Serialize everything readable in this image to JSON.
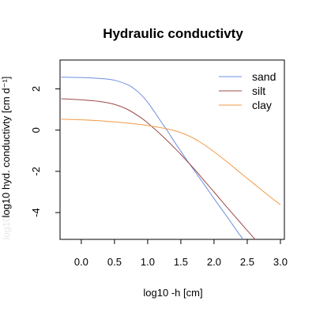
{
  "chart_data": {
    "type": "line",
    "title": "Hydraulic conductivty",
    "xlabel": "log10 -h [cm]",
    "ylabel": "log10 hyd. conductivty [cm d⁻¹]",
    "ylabel_faint_text": "log10 s",
    "xlim": [
      -0.32,
      3.06
    ],
    "ylim": [
      -5.3,
      3.4
    ],
    "xticks": [
      0.0,
      0.5,
      1.0,
      1.5,
      2.0,
      2.5,
      3.0
    ],
    "xtick_labels": [
      "0.0",
      "0.5",
      "1.0",
      "1.5",
      "2.0",
      "2.5",
      "3.0"
    ],
    "yticks": [
      -4,
      -2,
      0,
      2
    ],
    "ytick_labels": [
      "-4",
      "-2",
      "0",
      "2"
    ],
    "legend_position": "top-right",
    "colors": {
      "sand": "#6d8fe0",
      "silt": "#9b4a4a",
      "clay": "#f39a4a",
      "frame": "#000000"
    },
    "series": [
      {
        "name": "sand",
        "x": [
          -0.3,
          0.0,
          0.3,
          0.5,
          0.7,
          0.8,
          0.9,
          1.0,
          1.1,
          1.2,
          1.3,
          1.4,
          1.5,
          1.6,
          1.7,
          1.8,
          1.9,
          2.0,
          2.1,
          2.2,
          2.3,
          2.4,
          2.5
        ],
        "y": [
          2.57,
          2.55,
          2.5,
          2.42,
          2.2,
          2.0,
          1.72,
          1.35,
          0.9,
          0.42,
          -0.05,
          -0.55,
          -1.03,
          -1.5,
          -1.95,
          -2.4,
          -2.86,
          -3.32,
          -3.77,
          -4.22,
          -4.68,
          -5.13,
          -5.55
        ]
      },
      {
        "name": "silt",
        "x": [
          -0.3,
          0.0,
          0.3,
          0.5,
          0.7,
          0.9,
          1.0,
          1.1,
          1.2,
          1.3,
          1.4,
          1.5,
          1.6,
          1.7,
          1.8,
          1.9,
          2.0,
          2.1,
          2.2,
          2.3,
          2.4,
          2.5,
          2.6,
          2.7
        ],
        "y": [
          1.52,
          1.47,
          1.38,
          1.25,
          1.0,
          0.6,
          0.35,
          0.07,
          -0.22,
          -0.53,
          -0.85,
          -1.18,
          -1.53,
          -1.88,
          -2.25,
          -2.63,
          -3.0,
          -3.38,
          -3.76,
          -4.13,
          -4.5,
          -4.87,
          -5.23,
          -5.6
        ]
      },
      {
        "name": "clay",
        "x": [
          -0.3,
          0.0,
          0.3,
          0.5,
          0.7,
          0.9,
          1.0,
          1.2,
          1.4,
          1.6,
          1.8,
          2.0,
          2.2,
          2.4,
          2.6,
          2.8,
          3.0
        ],
        "y": [
          0.53,
          0.5,
          0.45,
          0.4,
          0.34,
          0.27,
          0.22,
          0.12,
          -0.02,
          -0.25,
          -0.6,
          -1.05,
          -1.55,
          -2.08,
          -2.6,
          -3.12,
          -3.62
        ]
      }
    ]
  }
}
